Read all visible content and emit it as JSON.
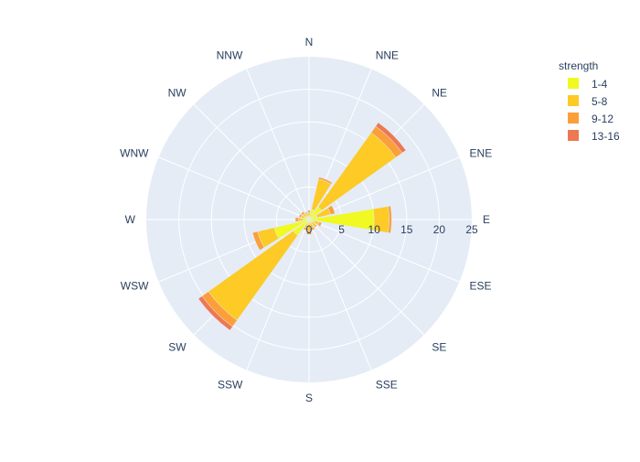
{
  "chart_data": {
    "type": "barpolar",
    "title": "",
    "directions": [
      "N",
      "NNE",
      "NE",
      "ENE",
      "E",
      "ESE",
      "SE",
      "SSE",
      "S",
      "SSW",
      "SW",
      "WSW",
      "W",
      "WNW",
      "NW",
      "NNW"
    ],
    "radial_ticks": [
      "0",
      "5",
      "10",
      "15",
      "20",
      "25"
    ],
    "radial_range": [
      0,
      25
    ],
    "grid": true,
    "legend": {
      "title": "strength",
      "placement": "top-right"
    },
    "series": [
      {
        "name": "1-4",
        "color": "#f0f921",
        "values": [
          0.5,
          1.6,
          2.4,
          1.3,
          10.0,
          0.8,
          0.6,
          0.5,
          0.5,
          0.8,
          3.0,
          5.5,
          0.9,
          0.7,
          0.6,
          0.5
        ]
      },
      {
        "name": "5-8",
        "color": "#fdca26",
        "values": [
          0.6,
          4.8,
          14.0,
          2.1,
          2.3,
          0.8,
          0.7,
          0.8,
          1.3,
          0.6,
          16.0,
          2.6,
          0.7,
          0.6,
          0.6,
          0.5
        ]
      },
      {
        "name": "9-12",
        "color": "#fb9f3a",
        "values": [
          0.3,
          0.3,
          1.2,
          0.7,
          0.4,
          0.4,
          0.2,
          0.4,
          0.5,
          0.3,
          1.2,
          0.8,
          0.5,
          0.3,
          0.3,
          0.2
        ]
      },
      {
        "name": "13-16",
        "color": "#ed7953",
        "values": [
          0.0,
          0.0,
          0.7,
          0.0,
          0.0,
          0.0,
          0.0,
          0.0,
          0.0,
          0.0,
          0.7,
          0.0,
          0.0,
          0.0,
          0.0,
          0.0
        ]
      }
    ]
  }
}
